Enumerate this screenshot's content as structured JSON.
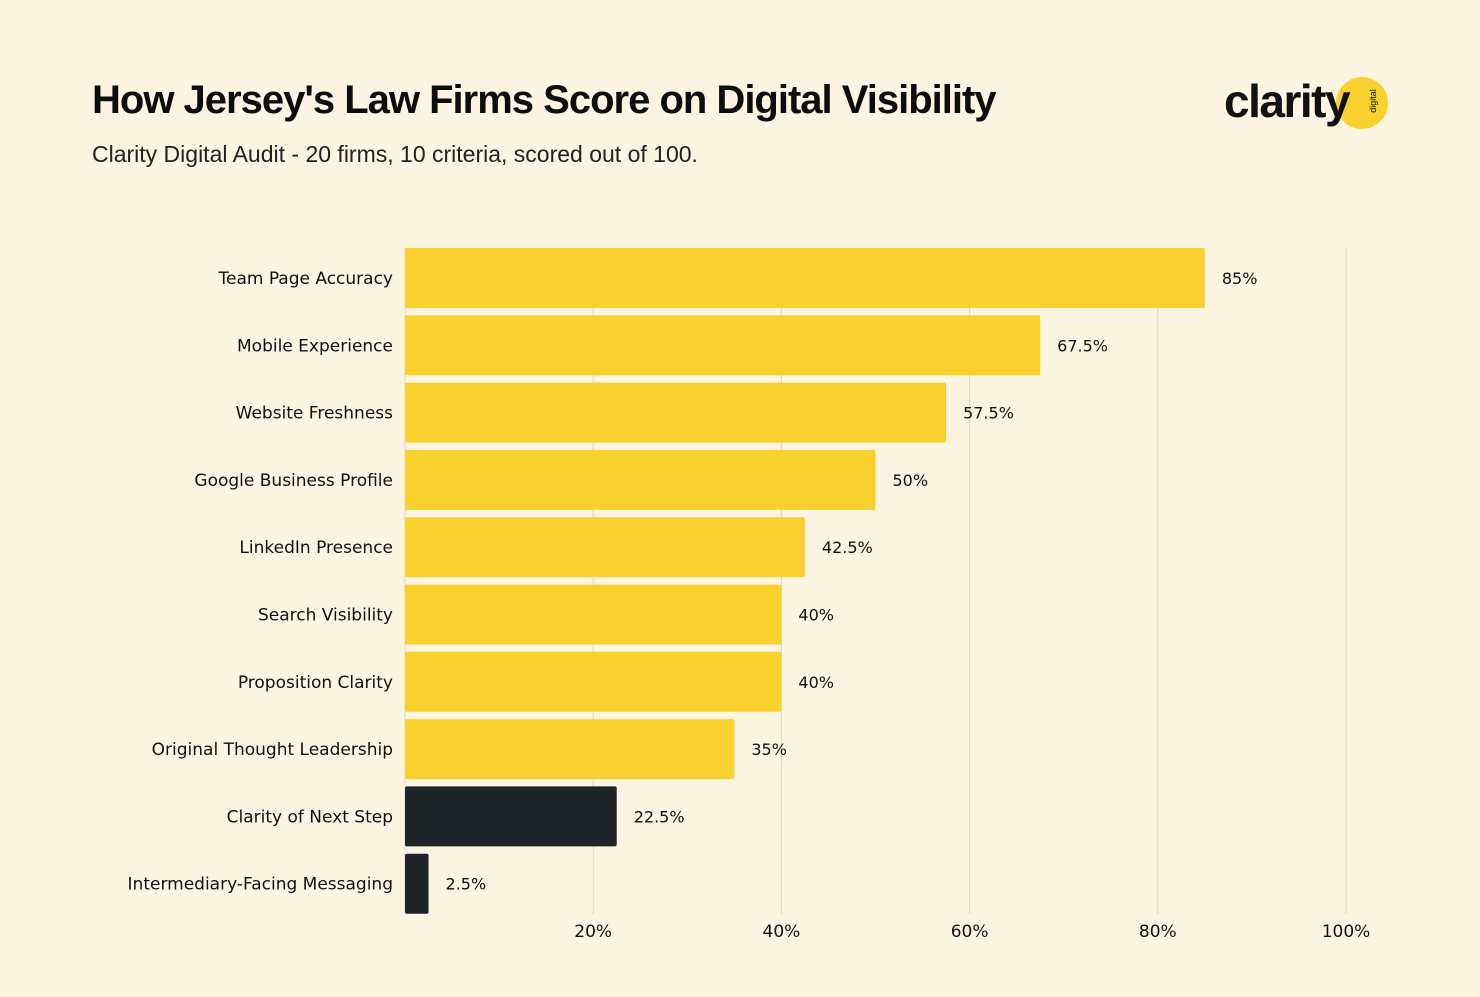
{
  "header": {
    "title": "How Jersey's Law Firms Score on Digital Visibility",
    "subtitle": "Clarity Digital Audit - 20 firms, 10 criteria, scored out of 100.",
    "logo_text": "clarity",
    "logo_sub": "digital"
  },
  "colors": {
    "background": "#fdf5e2",
    "highlight": "#f9d12e",
    "low": "#1e2428",
    "grid": "#ddd6c4",
    "logo_circle": "#f9d12e"
  },
  "chart_data": {
    "type": "bar",
    "orientation": "horizontal",
    "title": "How Jersey's Law Firms Score on Digital Visibility",
    "subtitle": "Clarity Digital Audit - 20 firms, 10 criteria, scored out of 100.",
    "categories": [
      "Team Page Accuracy",
      "Mobile Experience",
      "Website Freshness",
      "Google Business Profile",
      "LinkedIn Presence",
      "Search Visibility",
      "Proposition Clarity",
      "Original Thought Leadership",
      "Clarity of Next Step",
      "Intermediary-Facing Messaging"
    ],
    "values": [
      85,
      67.5,
      57.5,
      50,
      42.5,
      40,
      40,
      35,
      22.5,
      2.5
    ],
    "labels": [
      "85%",
      "67.5%",
      "57.5%",
      "50%",
      "42.5%",
      "40%",
      "40%",
      "35%",
      "22.5%",
      "2.5%"
    ],
    "bar_colors": [
      "#f9d12e",
      "#f9d12e",
      "#f9d12e",
      "#f9d12e",
      "#f9d12e",
      "#f9d12e",
      "#f9d12e",
      "#f9d12e",
      "#1e2428",
      "#1e2428"
    ],
    "xlim": [
      0,
      100
    ],
    "xticks": [
      20,
      40,
      60,
      80,
      100
    ],
    "xtick_labels": [
      "20%",
      "40%",
      "60%",
      "80%",
      "100%"
    ],
    "grid": "vertical",
    "xlabel": "",
    "ylabel": ""
  }
}
